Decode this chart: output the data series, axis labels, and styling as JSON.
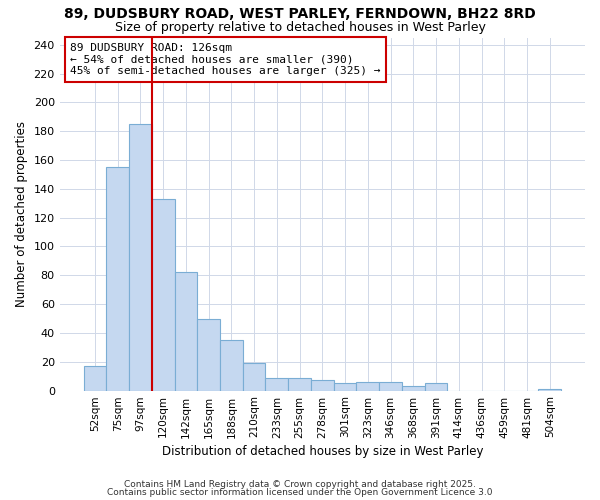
{
  "title1": "89, DUDSBURY ROAD, WEST PARLEY, FERNDOWN, BH22 8RD",
  "title2": "Size of property relative to detached houses in West Parley",
  "xlabel": "Distribution of detached houses by size in West Parley",
  "ylabel": "Number of detached properties",
  "annotation_title": "89 DUDSBURY ROAD: 126sqm",
  "annotation_line1": "← 54% of detached houses are smaller (390)",
  "annotation_line2": "45% of semi-detached houses are larger (325) →",
  "categories": [
    "52sqm",
    "75sqm",
    "97sqm",
    "120sqm",
    "142sqm",
    "165sqm",
    "188sqm",
    "210sqm",
    "233sqm",
    "255sqm",
    "278sqm",
    "301sqm",
    "323sqm",
    "346sqm",
    "368sqm",
    "391sqm",
    "414sqm",
    "436sqm",
    "459sqm",
    "481sqm",
    "504sqm"
  ],
  "values": [
    17,
    155,
    185,
    133,
    82,
    50,
    35,
    19,
    9,
    9,
    7,
    5,
    6,
    6,
    3,
    5,
    0,
    0,
    0,
    0,
    1
  ],
  "bar_color": "#c5d8f0",
  "bar_edge_color": "#7aadd4",
  "vline_color": "#cc0000",
  "annotation_box_color": "#ffffff",
  "annotation_box_edge": "#cc0000",
  "ylim": [
    0,
    245
  ],
  "yticks": [
    0,
    20,
    40,
    60,
    80,
    100,
    120,
    140,
    160,
    180,
    200,
    220,
    240
  ],
  "footer1": "Contains HM Land Registry data © Crown copyright and database right 2025.",
  "footer2": "Contains public sector information licensed under the Open Government Licence 3.0",
  "background_color": "#ffffff",
  "grid_color": "#d0d8e8"
}
